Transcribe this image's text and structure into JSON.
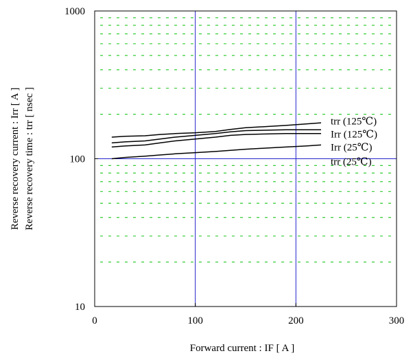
{
  "chart_data": {
    "type": "line",
    "xlabel": "Forward current  :  IF  [ A ]",
    "ylabel_line1": "Reverse recovery current  :  Irr  [ A ]",
    "ylabel_line2": "Reverse recovery time  :  trr  [ nsec ]",
    "xlim": [
      0,
      300
    ],
    "ylim": [
      10,
      1000
    ],
    "y_scale": "log",
    "x_ticks": [
      {
        "value": 0,
        "label": "0"
      },
      {
        "value": 100,
        "label": "100"
      },
      {
        "value": 200,
        "label": "200"
      },
      {
        "value": 300,
        "label": "300"
      }
    ],
    "y_ticks": [
      {
        "value": 10,
        "label": "10"
      },
      {
        "value": 100,
        "label": "100"
      },
      {
        "value": 1000,
        "label": "1000"
      }
    ],
    "grid": {
      "major": "solid blue lines at x=100, x=200 and y=100",
      "minor": "dashed green horizontal lines at log minor ticks"
    },
    "colors": {
      "major_grid": "#2222cc",
      "minor_grid": "#33cc33",
      "series": "#000000"
    },
    "series": [
      {
        "name": "trr (125℃)",
        "x": [
          17,
          30,
          50,
          65,
          80,
          100,
          120,
          135,
          150,
          170,
          190,
          210,
          225
        ],
        "y": [
          140,
          142,
          143,
          146,
          148,
          150,
          153,
          158,
          162,
          165,
          168,
          172,
          175
        ]
      },
      {
        "name": "Irr (125℃)",
        "x": [
          17,
          30,
          50,
          65,
          80,
          100,
          120,
          135,
          150,
          170,
          190,
          210,
          225
        ],
        "y": [
          128,
          130,
          132,
          136,
          140,
          144,
          148,
          152,
          155,
          156,
          157,
          157,
          157
        ]
      },
      {
        "name": "Irr (25℃)",
        "x": [
          17,
          30,
          50,
          65,
          80,
          100,
          120,
          135,
          150,
          170,
          190,
          210,
          225
        ],
        "y": [
          120,
          122,
          124,
          128,
          132,
          136,
          140,
          144,
          146,
          147,
          148,
          148,
          148
        ]
      },
      {
        "name": "trr (25℃)",
        "x": [
          17,
          30,
          50,
          65,
          80,
          100,
          120,
          135,
          150,
          170,
          190,
          210,
          225
        ],
        "y": [
          100,
          102,
          104,
          106,
          108,
          110,
          112,
          114,
          116,
          118,
          120,
          122,
          124
        ]
      }
    ],
    "annotations": [
      {
        "text": "trr (125℃)",
        "series_index": 0,
        "label_y": 180
      },
      {
        "text": "Irr (125℃)",
        "series_index": 1,
        "label_y": 147
      },
      {
        "text": "Irr (25℃)",
        "series_index": 2,
        "label_y": 120
      },
      {
        "text": "trr (25℃)",
        "series_index": 3,
        "label_y": 96
      }
    ]
  }
}
